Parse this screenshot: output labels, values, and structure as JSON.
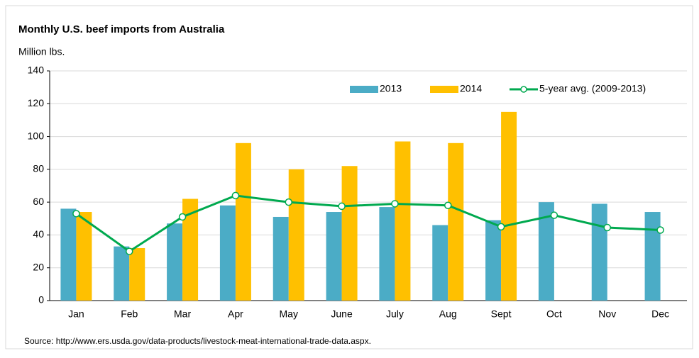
{
  "chart_data": {
    "type": "bar_line",
    "title": "Monthly U.S. beef imports from Australia",
    "y_label": "Million lbs.",
    "source": "Source: http://www.ers.usda.gov/data-products/livestock-meat-international-trade-data.aspx.",
    "categories": [
      "Jan",
      "Feb",
      "Mar",
      "Apr",
      "May",
      "June",
      "July",
      "Aug",
      "Sept",
      "Oct",
      "Nov",
      "Dec"
    ],
    "series": [
      {
        "name": "2013",
        "color": "#4bacc6",
        "type": "bar",
        "values": [
          56,
          33,
          47,
          58,
          51,
          54,
          57,
          46,
          49,
          60,
          59,
          54
        ]
      },
      {
        "name": "2014",
        "color": "#ffc000",
        "type": "bar",
        "values": [
          54,
          32,
          62,
          96,
          80,
          82,
          97,
          96,
          115,
          null,
          null,
          null
        ]
      },
      {
        "name": "5-year avg. (2009-2013)",
        "color": "#00a94f",
        "type": "line",
        "values": [
          53,
          30,
          51,
          64,
          60,
          57.5,
          59,
          58,
          45,
          52,
          44.5,
          43
        ]
      }
    ],
    "ylim": [
      0,
      140
    ],
    "yticks": [
      0,
      20,
      40,
      60,
      80,
      100,
      120,
      140
    ],
    "grid": true,
    "legend": "top-right"
  }
}
